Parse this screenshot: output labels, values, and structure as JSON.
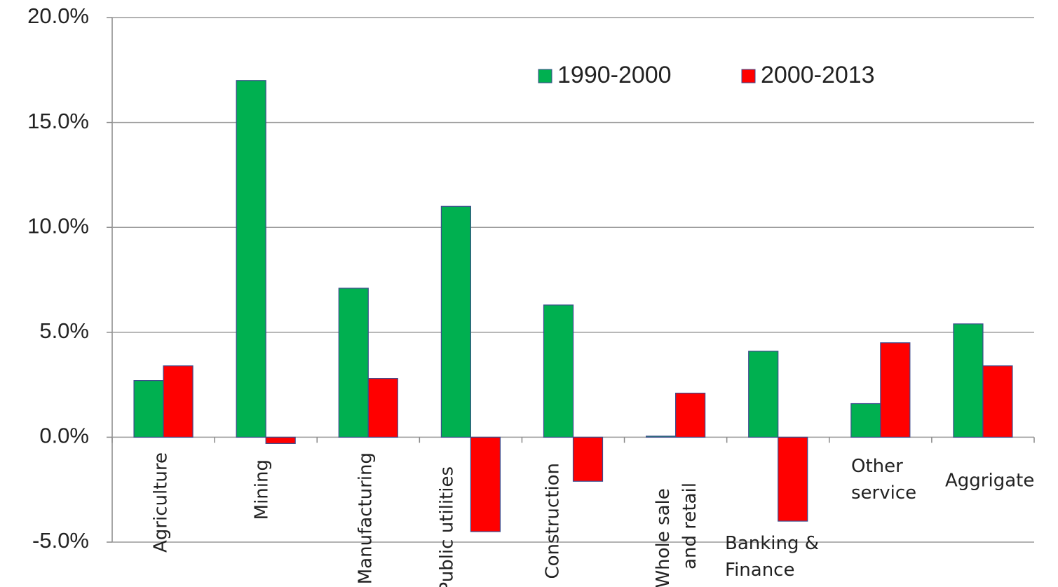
{
  "chart_data": {
    "type": "bar",
    "categories": [
      "Agriculture",
      "Mining",
      "Manufacturing",
      "Public utilities",
      "Construction",
      "Whole sale and retail",
      "Banking & Finance",
      "Other service",
      "Aggrigate"
    ],
    "series": [
      {
        "name": "1990-2000",
        "color": "#00b050",
        "values": [
          2.7,
          17.0,
          7.1,
          11.0,
          6.3,
          0.05,
          4.1,
          1.6,
          5.4
        ]
      },
      {
        "name": "2000-2013",
        "color": "#ff0000",
        "values": [
          3.4,
          -0.3,
          2.8,
          -4.5,
          -2.1,
          2.1,
          -4.0,
          4.5,
          3.4
        ]
      }
    ],
    "ylim": [
      -5,
      20
    ],
    "yticks": [
      {
        "value": -5,
        "label": "-5.0%"
      },
      {
        "value": 0,
        "label": "0.0%"
      },
      {
        "value": 5,
        "label": "5.0%"
      },
      {
        "value": 10,
        "label": "10.0%"
      },
      {
        "value": 15,
        "label": "15.0%"
      },
      {
        "value": 20,
        "label": "20.0%"
      }
    ],
    "grid": true,
    "legend": "top"
  }
}
